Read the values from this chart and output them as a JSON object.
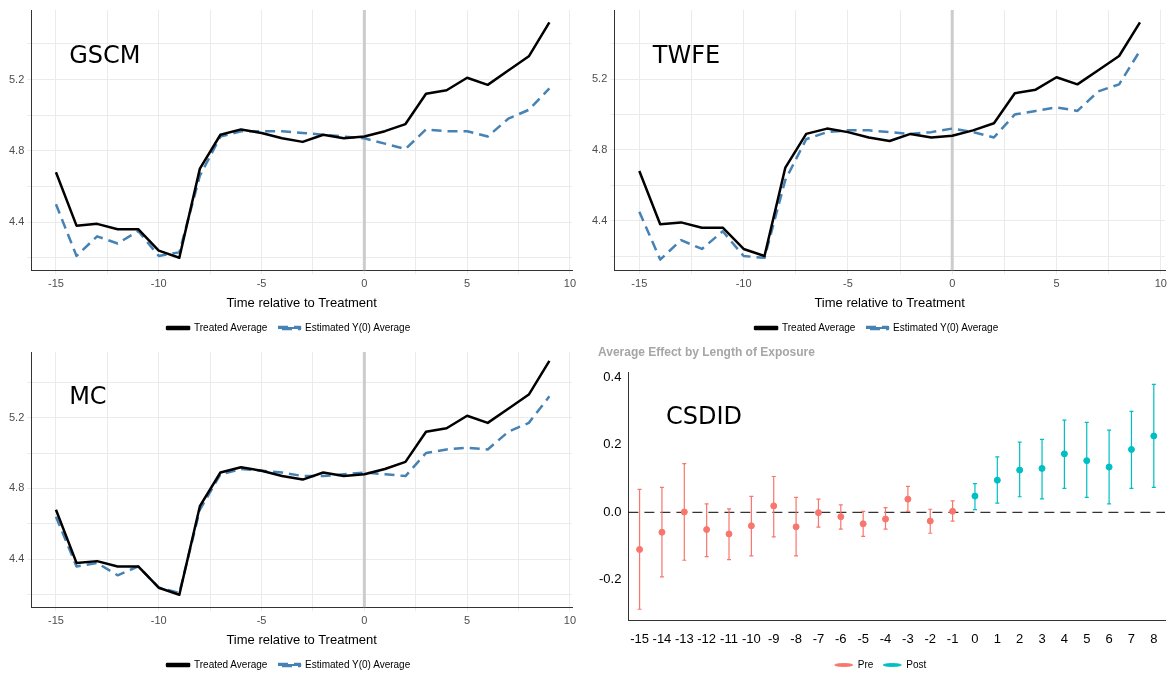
{
  "chart_data": [
    {
      "type": "line",
      "xlabel": "Time relative to Treatment",
      "annotations": [
        "GSCM"
      ],
      "x": [
        -15,
        -14,
        -13,
        -12,
        -11,
        -10,
        -9,
        -8,
        -7,
        -6,
        -5,
        -4,
        -3,
        -2,
        -1,
        0,
        1,
        2,
        3,
        4,
        5,
        6,
        7,
        8,
        9
      ],
      "series": [
        {
          "name": "Treated Average",
          "color": "#000000",
          "line_style": "solid",
          "values": [
            4.68,
            4.38,
            4.39,
            4.36,
            4.36,
            4.24,
            4.2,
            4.7,
            4.89,
            4.92,
            4.9,
            4.87,
            4.85,
            4.89,
            4.87,
            4.88,
            4.91,
            4.95,
            5.12,
            5.14,
            5.21,
            5.17,
            5.25,
            5.33,
            5.52
          ]
        },
        {
          "name": "Estimated Y(0) Average",
          "color": "#4682b4",
          "line_style": "dashed",
          "values": [
            4.5,
            4.21,
            4.32,
            4.28,
            4.35,
            4.21,
            4.23,
            4.66,
            4.88,
            4.91,
            4.91,
            4.91,
            4.9,
            4.89,
            4.88,
            4.87,
            4.84,
            4.81,
            4.92,
            4.91,
            4.91,
            4.88,
            4.98,
            5.03,
            5.15
          ]
        }
      ],
      "xlim": [
        -16.2,
        10.1
      ],
      "xticks": [
        -15,
        {
          "value": -12.5,
          "label": null
        },
        -10,
        {
          "value": -7.5,
          "label": null
        },
        -5,
        {
          "value": -2.5,
          "label": null
        },
        0,
        {
          "value": 2.5,
          "label": null
        },
        5,
        {
          "value": 7.5,
          "label": null
        },
        10
      ],
      "ylim": [
        4.13,
        5.59
      ],
      "yticks": [
        {
          "value": 4.2,
          "label": null
        },
        4.4,
        {
          "value": 4.6,
          "label": null
        },
        4.8,
        {
          "value": 5.0,
          "label": null
        },
        5.2,
        {
          "value": 5.4,
          "label": null
        }
      ],
      "ref_lines": [
        {
          "axis": "x",
          "value": 0,
          "color": "#cccccc"
        }
      ],
      "grid": true,
      "legend": "bottom",
      "marker": "none"
    },
    {
      "type": "line",
      "xlabel": "Time relative to Treatment",
      "annotations": [
        "TWFE"
      ],
      "x": [
        -15,
        -14,
        -13,
        -12,
        -11,
        -10,
        -9,
        -8,
        -7,
        -6,
        -5,
        -4,
        -3,
        -2,
        -1,
        0,
        1,
        2,
        3,
        4,
        5,
        6,
        7,
        8,
        9
      ],
      "series": [
        {
          "name": "Treated Average",
          "color": "#000000",
          "line_style": "solid",
          "values": [
            4.68,
            4.38,
            4.39,
            4.36,
            4.36,
            4.24,
            4.2,
            4.7,
            4.89,
            4.92,
            4.9,
            4.87,
            4.85,
            4.89,
            4.87,
            4.88,
            4.91,
            4.95,
            5.12,
            5.14,
            5.21,
            5.17,
            5.25,
            5.33,
            5.52
          ]
        },
        {
          "name": "Estimated Y(0) Average",
          "color": "#4682b4",
          "line_style": "dashed",
          "values": [
            4.45,
            4.18,
            4.29,
            4.24,
            4.34,
            4.2,
            4.19,
            4.63,
            4.86,
            4.9,
            4.91,
            4.91,
            4.9,
            4.89,
            4.9,
            4.92,
            4.9,
            4.87,
            5.0,
            5.02,
            5.04,
            5.02,
            5.13,
            5.17,
            5.36
          ]
        }
      ],
      "xlim": [
        -16.2,
        10.2
      ],
      "xticks": [
        -15,
        {
          "value": -12.5,
          "label": null
        },
        -10,
        {
          "value": -7.5,
          "label": null
        },
        -5,
        {
          "value": -2.5,
          "label": null
        },
        0,
        {
          "value": 2.5,
          "label": null
        },
        5,
        {
          "value": 7.5,
          "label": null
        },
        10
      ],
      "ylim": [
        4.12,
        5.59
      ],
      "yticks": [
        {
          "value": 4.2,
          "label": null
        },
        4.4,
        {
          "value": 4.6,
          "label": null
        },
        4.8,
        {
          "value": 5.0,
          "label": null
        },
        5.2,
        {
          "value": 5.4,
          "label": null
        }
      ],
      "ref_lines": [
        {
          "axis": "x",
          "value": 0,
          "color": "#cccccc"
        }
      ],
      "grid": true,
      "legend": "bottom",
      "marker": "none"
    },
    {
      "type": "line",
      "xlabel": "Time relative to Treatment",
      "annotations": [
        "MC"
      ],
      "x": [
        -15,
        -14,
        -13,
        -12,
        -11,
        -10,
        -9,
        -8,
        -7,
        -6,
        -5,
        -4,
        -3,
        -2,
        -1,
        0,
        1,
        2,
        3,
        4,
        5,
        6,
        7,
        8,
        9
      ],
      "series": [
        {
          "name": "Treated Average",
          "color": "#000000",
          "line_style": "solid",
          "values": [
            4.68,
            4.38,
            4.39,
            4.36,
            4.36,
            4.24,
            4.2,
            4.7,
            4.89,
            4.92,
            4.9,
            4.87,
            4.85,
            4.89,
            4.87,
            4.88,
            4.91,
            4.95,
            5.12,
            5.14,
            5.21,
            5.17,
            5.25,
            5.33,
            5.52
          ]
        },
        {
          "name": "Estimated Y(0) Average",
          "color": "#4682b4",
          "line_style": "dashed",
          "values": [
            4.64,
            4.36,
            4.38,
            4.31,
            4.36,
            4.24,
            4.21,
            4.68,
            4.88,
            4.91,
            4.9,
            4.89,
            4.87,
            4.87,
            4.88,
            4.89,
            4.88,
            4.87,
            5.0,
            5.02,
            5.03,
            5.02,
            5.12,
            5.17,
            5.32
          ]
        }
      ],
      "xlim": [
        -16.2,
        10.1
      ],
      "xticks": [
        -15,
        {
          "value": -12.5,
          "label": null
        },
        -10,
        {
          "value": -7.5,
          "label": null
        },
        -5,
        {
          "value": -2.5,
          "label": null
        },
        0,
        {
          "value": 2.5,
          "label": null
        },
        5,
        {
          "value": 7.5,
          "label": null
        },
        10
      ],
      "ylim": [
        4.13,
        5.57
      ],
      "yticks": [
        {
          "value": 4.2,
          "label": null
        },
        4.4,
        {
          "value": 4.6,
          "label": null
        },
        4.8,
        {
          "value": 5.0,
          "label": null
        },
        5.2,
        {
          "value": 5.4,
          "label": null
        }
      ],
      "ref_lines": [
        {
          "axis": "x",
          "value": 0,
          "color": "#cccccc"
        }
      ],
      "grid": true,
      "legend": "bottom",
      "marker": "none"
    },
    {
      "type": "scatter",
      "title": "Average Effect by Length of Exposure",
      "annotations": [
        "CSDID"
      ],
      "categories": [
        "-15",
        "-14",
        "-13",
        "-12",
        "-11",
        "-10",
        "-9",
        "-8",
        "-7",
        "-6",
        "-5",
        "-4",
        "-3",
        "-2",
        "-1",
        "0",
        "1",
        "2",
        "3",
        "4",
        "5",
        "6",
        "7",
        "8"
      ],
      "series": [
        {
          "name": "Pre",
          "color": "#f8766d",
          "values": [
            -0.11,
            -0.059,
            0.001,
            -0.051,
            -0.064,
            -0.04,
            0.019,
            -0.043,
            -0.001,
            -0.013,
            -0.034,
            -0.02,
            0.039,
            -0.026,
            0.003,
            null,
            null,
            null,
            null,
            null,
            null,
            null,
            null,
            null
          ],
          "errors": [
            [
              -0.287,
              0.068
            ],
            [
              -0.191,
              0.074
            ],
            [
              -0.142,
              0.144
            ],
            [
              -0.131,
              0.025
            ],
            [
              -0.14,
              0.01
            ],
            [
              -0.129,
              0.047
            ],
            [
              -0.073,
              0.106
            ],
            [
              -0.129,
              0.044
            ],
            [
              -0.044,
              0.039
            ],
            [
              -0.05,
              0.022
            ],
            [
              -0.071,
              0.003
            ],
            [
              -0.05,
              0.014
            ],
            [
              0.003,
              0.077
            ],
            [
              -0.062,
              0.009
            ],
            [
              -0.026,
              0.034
            ],
            null,
            null,
            null,
            null,
            null,
            null,
            null,
            null,
            null
          ]
        },
        {
          "name": "Post",
          "color": "#00bfc4",
          "values": [
            null,
            null,
            null,
            null,
            null,
            null,
            null,
            null,
            null,
            null,
            null,
            null,
            null,
            null,
            null,
            0.048,
            0.095,
            0.125,
            0.13,
            0.173,
            0.153,
            0.134,
            0.186,
            0.226
          ],
          "errors": [
            null,
            null,
            null,
            null,
            null,
            null,
            null,
            null,
            null,
            null,
            null,
            null,
            null,
            null,
            null,
            [
              0.008,
              0.085
            ],
            [
              0.027,
              0.164
            ],
            [
              0.046,
              0.208
            ],
            [
              0.04,
              0.216
            ],
            [
              0.071,
              0.273
            ],
            [
              0.044,
              0.266
            ],
            [
              0.025,
              0.243
            ],
            [
              0.071,
              0.299
            ],
            [
              0.074,
              0.379
            ]
          ]
        }
      ],
      "ylim": [
        -0.32,
        0.413
      ],
      "yticks": [
        -0.2,
        {
          "value": 0,
          "label": "0.0"
        },
        0.2,
        0.4
      ],
      "ref_lines": [
        {
          "axis": "y",
          "value": 0,
          "color": "#000000",
          "line_style": "dashed"
        }
      ],
      "grid": false,
      "legend": "bottom",
      "marker": "circle"
    }
  ]
}
